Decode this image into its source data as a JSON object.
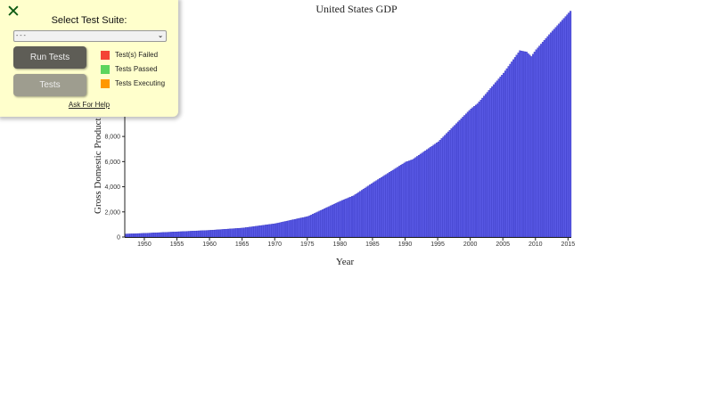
{
  "panel": {
    "close_icon": "✕",
    "suite_label": "Select Test Suite:",
    "suite_select_value": "- - -",
    "run_button": "Run Tests",
    "tests_button": "Tests",
    "legend": [
      {
        "label": "Test(s) Failed",
        "color": "#f44336"
      },
      {
        "label": "Tests Passed",
        "color": "#5dd55d"
      },
      {
        "label": "Tests Executing",
        "color": "#ff9800"
      }
    ],
    "help_link": "Ask For Help"
  },
  "chart_data": {
    "type": "bar",
    "title": "United States GDP",
    "xlabel": "Year",
    "ylabel": "Gross Domestic Product",
    "ylim": [
      0,
      18500
    ],
    "xlim": [
      1947,
      2015.5
    ],
    "bar_color": "#5a5ae6",
    "x_ticks": [
      "1950",
      "1955",
      "1960",
      "1965",
      "1970",
      "1975",
      "1980",
      "1985",
      "1990",
      "1995",
      "2000",
      "2005",
      "2010",
      "2015"
    ],
    "y_ticks": [
      "0",
      "2,000",
      "4,000",
      "6,000",
      "8,000"
    ],
    "granularity": "quarterly",
    "annual_anchors": {
      "x": [
        1947,
        1950,
        1955,
        1960,
        1965,
        1970,
        1975,
        1980,
        1982,
        1985,
        1990,
        1991,
        1995,
        2000,
        2001,
        2005,
        2007.5,
        2008.5,
        2009.25,
        2010,
        2012,
        2015.25
      ],
      "y": [
        243,
        300,
        420,
        540,
        720,
        1070,
        1640,
        2860,
        3290,
        4330,
        5970,
        6150,
        7580,
        10200,
        10600,
        13040,
        14830,
        14720,
        14360,
        14900,
        16100,
        17970
      ]
    }
  }
}
